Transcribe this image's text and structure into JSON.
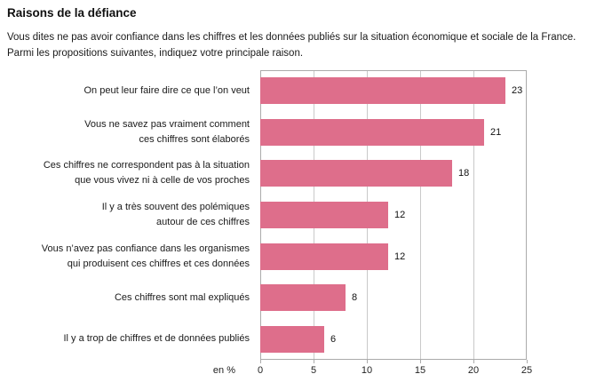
{
  "page": {
    "title": "Raisons de la défiance",
    "subtitle": "Vous dites ne pas avoir confiance dans les chiffres et les données publiés sur la situation économique et sociale de la France. Parmi les propositions suivantes, indiquez votre principale raison."
  },
  "chart_data": {
    "type": "bar",
    "orientation": "horizontal",
    "title": "Raisons de la défiance",
    "categories": [
      "On peut leur faire dire ce que l’on veut",
      "Vous ne savez pas vraiment comment\nces chiffres sont élaborés",
      "Ces chiffres ne correspondent pas à la situation\nque vous vivez ni à celle de vos proches",
      "Il y a très souvent des polémiques\nautour de ces chiffres",
      "Vous n’avez pas confiance dans les organismes\nqui produisent ces chiffres et ces données",
      "Ces chiffres sont mal expliqués",
      "Il y a trop de chiffres et de données publiés"
    ],
    "values": [
      23,
      21,
      18,
      12,
      12,
      8,
      6
    ],
    "value_labels": [
      "23",
      "21",
      "18",
      "12",
      "12",
      "8",
      "6"
    ],
    "xlabel": "en %",
    "xticks": [
      0,
      5,
      10,
      15,
      20,
      25
    ],
    "xlim": [
      0,
      25
    ],
    "grid": true,
    "legend": false,
    "bar_color": "#de6e8b",
    "gridline_color": "#c9c9c9",
    "border_color": "#ababab"
  }
}
